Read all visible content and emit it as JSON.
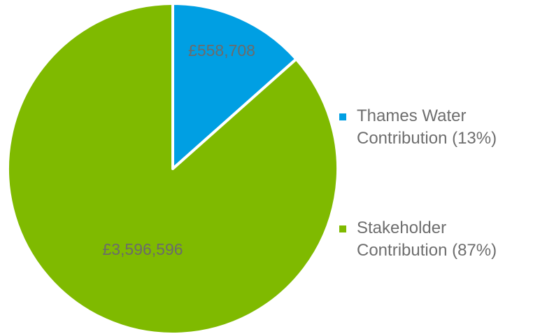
{
  "chart_data": {
    "type": "pie",
    "categories": [
      "Thames Water Contribution",
      "Stakeholder Contribution"
    ],
    "values": [
      558708,
      3596596
    ],
    "data_labels": [
      "£558,708",
      "£3,596,596"
    ],
    "colors": [
      "#009fe3",
      "#7fba00"
    ],
    "legend_position": "right",
    "legend": [
      {
        "line1": "Thames Water",
        "line2": "Contribution (13%)",
        "color": "#009fe3"
      },
      {
        "line1": "Stakeholder",
        "line2": "Contribution (87%)",
        "color": "#7fba00"
      }
    ]
  }
}
